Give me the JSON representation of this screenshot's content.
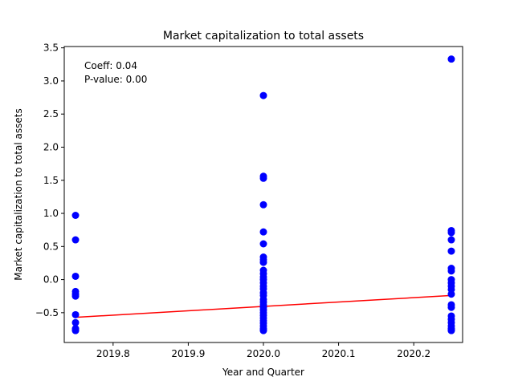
{
  "chart_data": {
    "type": "scatter",
    "title": "Market capitalization to total assets",
    "xlabel": "Year and Quarter",
    "ylabel": "Market capitalization to total assets",
    "xlim": [
      2019.735,
      2020.265
    ],
    "ylim": [
      -0.95,
      3.52
    ],
    "x_ticks": [
      2019.8,
      2019.9,
      2020.0,
      2020.1,
      2020.2
    ],
    "x_tick_labels": [
      "2019.8",
      "2019.9",
      "2020.0",
      "2020.1",
      "2020.2"
    ],
    "y_ticks": [
      -0.5,
      0.0,
      0.5,
      1.0,
      1.5,
      2.0,
      2.5,
      3.0,
      3.5
    ],
    "y_tick_labels": [
      "−0.5",
      "0.0",
      "0.5",
      "1.0",
      "1.5",
      "2.0",
      "2.5",
      "3.0",
      "3.5"
    ],
    "grid": false,
    "annotations": {
      "coeff": "Coeff: 0.04",
      "pvalue": "P-value: 0.00"
    },
    "point_color": "#0000ff",
    "line_color": "#ff0000",
    "points": [
      {
        "x": 2019.75,
        "y": 0.97
      },
      {
        "x": 2019.75,
        "y": 0.6
      },
      {
        "x": 2019.75,
        "y": 0.05
      },
      {
        "x": 2019.75,
        "y": -0.18
      },
      {
        "x": 2019.75,
        "y": -0.22
      },
      {
        "x": 2019.75,
        "y": -0.25
      },
      {
        "x": 2019.75,
        "y": -0.53
      },
      {
        "x": 2019.75,
        "y": -0.65
      },
      {
        "x": 2019.75,
        "y": -0.74
      },
      {
        "x": 2019.75,
        "y": -0.76
      },
      {
        "x": 2019.75,
        "y": -0.77
      },
      {
        "x": 2020.0,
        "y": 2.78
      },
      {
        "x": 2020.0,
        "y": 1.56
      },
      {
        "x": 2020.0,
        "y": 1.53
      },
      {
        "x": 2020.0,
        "y": 1.13
      },
      {
        "x": 2020.0,
        "y": 0.72
      },
      {
        "x": 2020.0,
        "y": 0.54
      },
      {
        "x": 2020.0,
        "y": 0.34
      },
      {
        "x": 2020.0,
        "y": 0.3
      },
      {
        "x": 2020.0,
        "y": 0.26
      },
      {
        "x": 2020.0,
        "y": 0.14
      },
      {
        "x": 2020.0,
        "y": 0.09
      },
      {
        "x": 2020.0,
        "y": 0.04
      },
      {
        "x": 2020.0,
        "y": 0.0
      },
      {
        "x": 2020.0,
        "y": -0.05
      },
      {
        "x": 2020.0,
        "y": -0.1
      },
      {
        "x": 2020.0,
        "y": -0.14
      },
      {
        "x": 2020.0,
        "y": -0.2
      },
      {
        "x": 2020.0,
        "y": -0.24
      },
      {
        "x": 2020.0,
        "y": -0.3
      },
      {
        "x": 2020.0,
        "y": -0.34
      },
      {
        "x": 2020.0,
        "y": -0.38
      },
      {
        "x": 2020.0,
        "y": -0.42
      },
      {
        "x": 2020.0,
        "y": -0.46
      },
      {
        "x": 2020.0,
        "y": -0.5
      },
      {
        "x": 2020.0,
        "y": -0.54
      },
      {
        "x": 2020.0,
        "y": -0.58
      },
      {
        "x": 2020.0,
        "y": -0.62
      },
      {
        "x": 2020.0,
        "y": -0.66
      },
      {
        "x": 2020.0,
        "y": -0.7
      },
      {
        "x": 2020.0,
        "y": -0.74
      },
      {
        "x": 2020.0,
        "y": -0.76
      },
      {
        "x": 2020.0,
        "y": -0.77
      },
      {
        "x": 2020.25,
        "y": 3.33
      },
      {
        "x": 2020.25,
        "y": 0.74
      },
      {
        "x": 2020.25,
        "y": 0.71
      },
      {
        "x": 2020.25,
        "y": 0.6
      },
      {
        "x": 2020.25,
        "y": 0.43
      },
      {
        "x": 2020.25,
        "y": 0.17
      },
      {
        "x": 2020.25,
        "y": 0.13
      },
      {
        "x": 2020.25,
        "y": 0.0
      },
      {
        "x": 2020.25,
        "y": -0.05
      },
      {
        "x": 2020.25,
        "y": -0.1
      },
      {
        "x": 2020.25,
        "y": -0.15
      },
      {
        "x": 2020.25,
        "y": -0.22
      },
      {
        "x": 2020.25,
        "y": -0.38
      },
      {
        "x": 2020.25,
        "y": -0.42
      },
      {
        "x": 2020.25,
        "y": -0.55
      },
      {
        "x": 2020.25,
        "y": -0.6
      },
      {
        "x": 2020.25,
        "y": -0.65
      },
      {
        "x": 2020.25,
        "y": -0.7
      },
      {
        "x": 2020.25,
        "y": -0.74
      },
      {
        "x": 2020.25,
        "y": -0.76
      },
      {
        "x": 2020.25,
        "y": -0.77
      }
    ],
    "fit_line": {
      "x": [
        2019.75,
        2020.25
      ],
      "y": [
        -0.57,
        -0.24
      ]
    }
  }
}
